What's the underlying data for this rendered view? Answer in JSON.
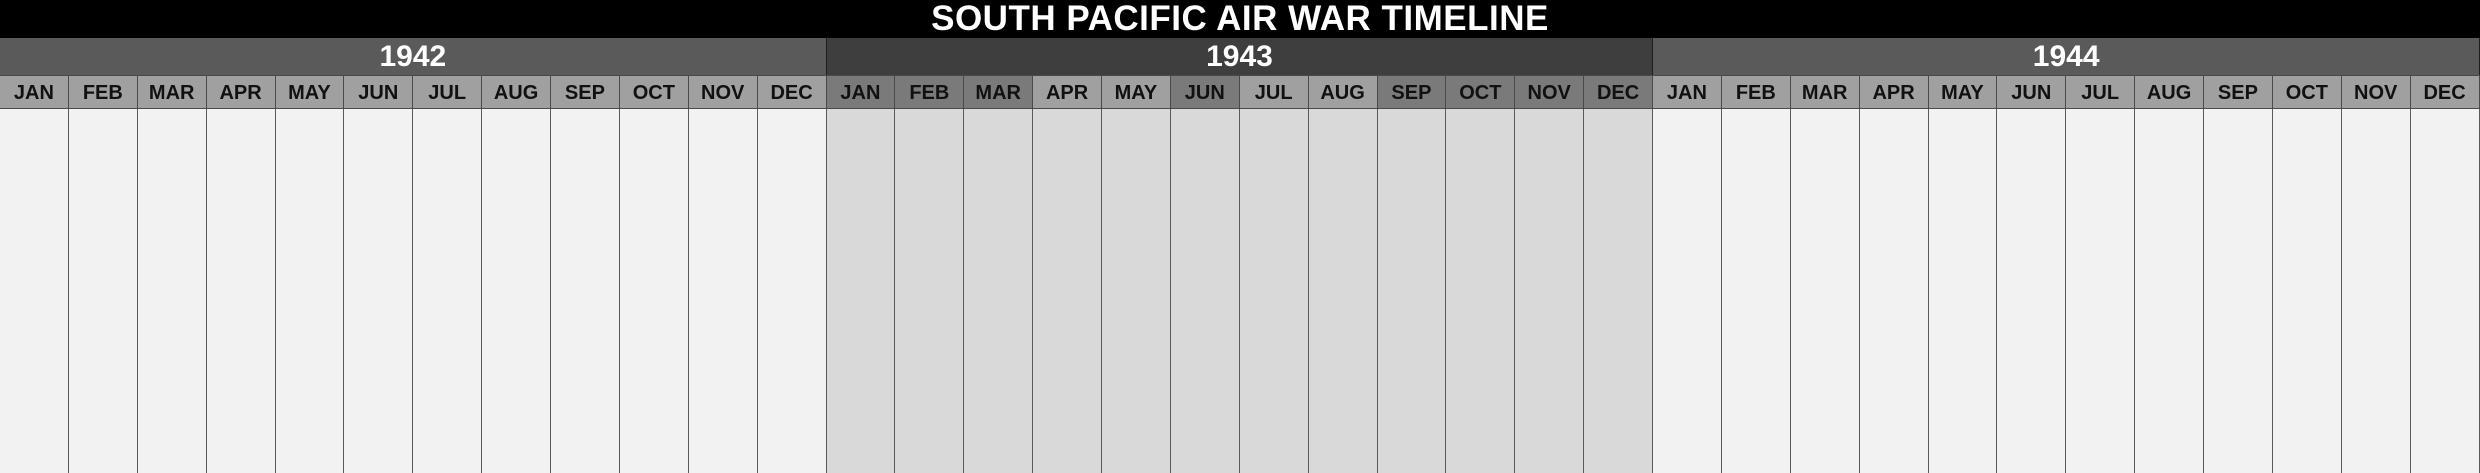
{
  "title": "SOUTH PACIFIC AIR WAR TIMELINE",
  "months": [
    "JAN",
    "FEB",
    "MAR",
    "APR",
    "MAY",
    "JUN",
    "JUL",
    "AUG",
    "SEP",
    "OCT",
    "NOV",
    "DEC"
  ],
  "years": [
    {
      "label": "1942",
      "header_color": "#5a5a5a",
      "month_colors": [
        "#a0a0a0",
        "#a0a0a0",
        "#a0a0a0",
        "#a0a0a0",
        "#a0a0a0",
        "#a0a0a0",
        "#a0a0a0",
        "#a0a0a0",
        "#a0a0a0",
        "#a0a0a0",
        "#a0a0a0",
        "#a0a0a0"
      ],
      "column_color": "#f2f2f2"
    },
    {
      "label": "1943",
      "header_color": "#3e3e3e",
      "month_colors": [
        "#7a7a7a",
        "#7a7a7a",
        "#7a7a7a",
        "#a0a0a0",
        "#a0a0a0",
        "#7a7a7a",
        "#a0a0a0",
        "#a0a0a0",
        "#7a7a7a",
        "#7a7a7a",
        "#7a7a7a",
        "#7a7a7a"
      ],
      "column_color": "#d9d9d9"
    },
    {
      "label": "1944",
      "header_color": "#5a5a5a",
      "month_colors": [
        "#a0a0a0",
        "#a0a0a0",
        "#a0a0a0",
        "#a0a0a0",
        "#a0a0a0",
        "#a0a0a0",
        "#a0a0a0",
        "#a0a0a0",
        "#a0a0a0",
        "#a0a0a0",
        "#a0a0a0",
        "#a0a0a0"
      ],
      "column_color": "#f2f2f2"
    }
  ]
}
